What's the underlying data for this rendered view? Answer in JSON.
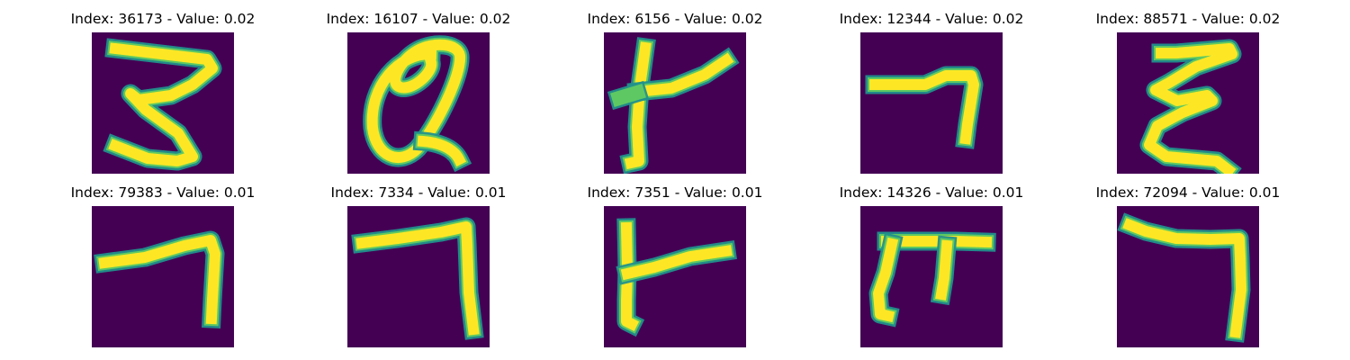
{
  "colors": {
    "background": "#440154",
    "stroke_edge": "#21918c",
    "stroke_mid": "#5ec962",
    "stroke_core": "#fde725"
  },
  "panels": [
    {
      "title": "Index: 36173 - Value: 0.02",
      "glyph": "digit-3-like"
    },
    {
      "title": "Index: 16107 - Value: 0.02",
      "glyph": "at-sign-like"
    },
    {
      "title": "Index: 6156 - Value: 0.02",
      "glyph": "k-like"
    },
    {
      "title": "Index: 12344 - Value: 0.02",
      "glyph": "seven-like"
    },
    {
      "title": "Index: 88571 - Value: 0.02",
      "glyph": "epsilon-like"
    },
    {
      "title": "Index: 79383 - Value: 0.01",
      "glyph": "seven-like"
    },
    {
      "title": "Index: 7334 - Value: 0.01",
      "glyph": "seven-like"
    },
    {
      "title": "Index: 7351 - Value: 0.01",
      "glyph": "k-like"
    },
    {
      "title": "Index: 14326 - Value: 0.01",
      "glyph": "pi-like"
    },
    {
      "title": "Index: 72094 - Value: 0.01",
      "glyph": "seven-like"
    }
  ]
}
